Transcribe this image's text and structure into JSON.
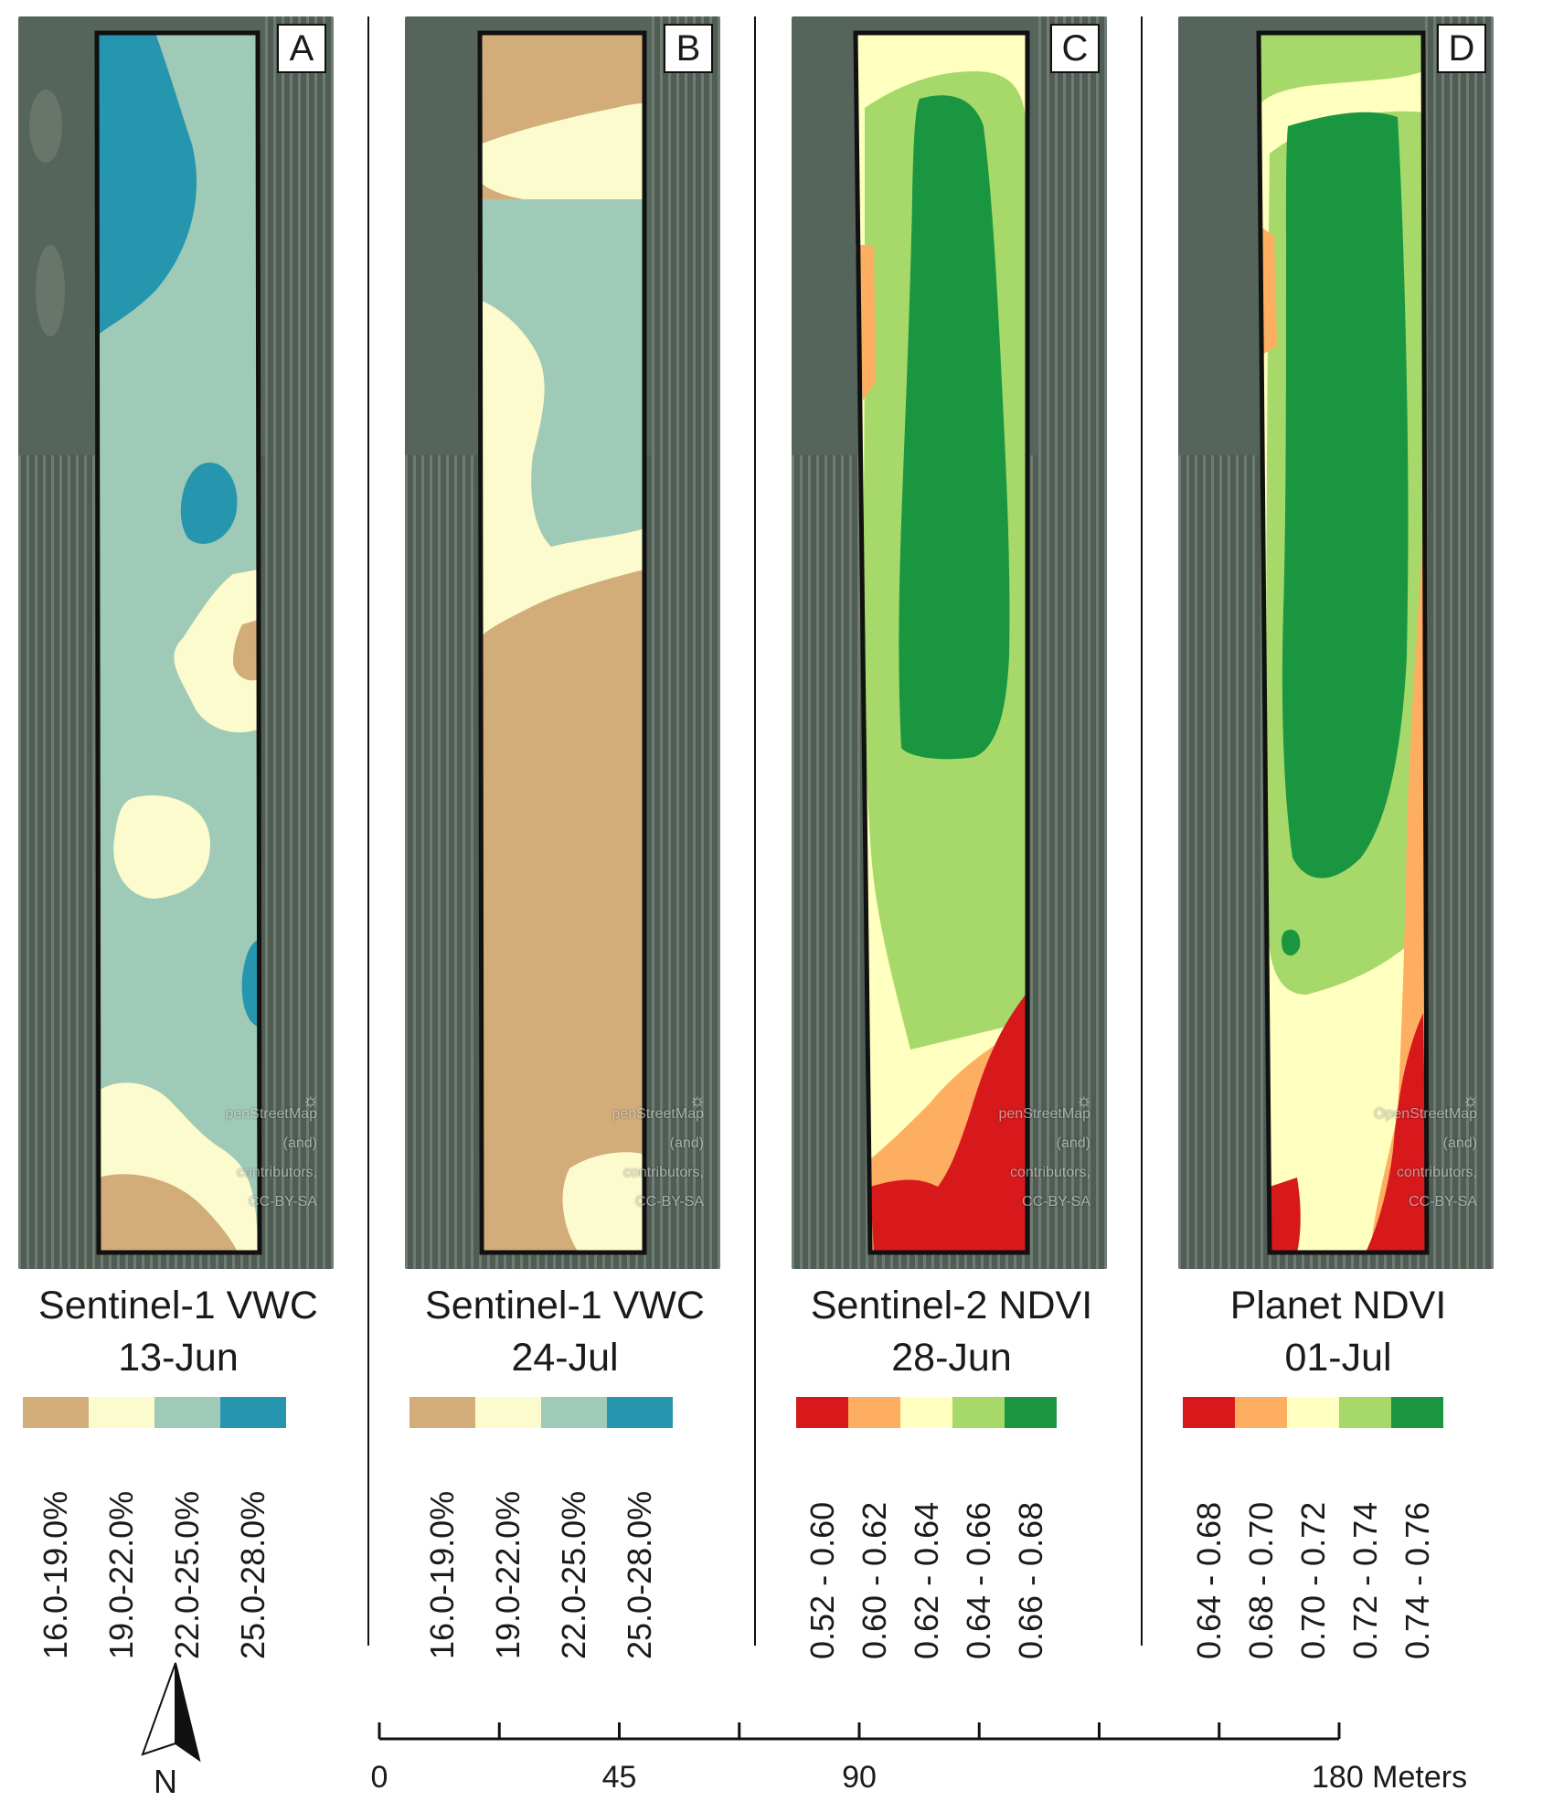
{
  "panels": [
    {
      "letter": "A",
      "title_line1": "Sentinel-1 VWC",
      "title_line2": "13-Jun",
      "attribution": [
        "penStreetMap",
        "(and)",
        "contributors,",
        "CC-BY-SA"
      ],
      "legend": [
        {
          "label": "16.0-19.0%",
          "color": "#d2ad7a"
        },
        {
          "label": "19.0-22.0%",
          "color": "#fbfbcd"
        },
        {
          "label": "22.0-25.0%",
          "color": "#9ecab7"
        },
        {
          "label": "25.0-28.0%",
          "color": "#2596ad"
        }
      ]
    },
    {
      "letter": "B",
      "title_line1": "Sentinel-1 VWC",
      "title_line2": "24-Jul",
      "attribution": [
        "penStreetMap",
        "(and)",
        "contributors,",
        "CC-BY-SA"
      ],
      "legend": [
        {
          "label": "16.0-19.0%",
          "color": "#d2ad7a"
        },
        {
          "label": "19.0-22.0%",
          "color": "#fbfbcd"
        },
        {
          "label": "22.0-25.0%",
          "color": "#9ecab7"
        },
        {
          "label": "25.0-28.0%",
          "color": "#2596ad"
        }
      ]
    },
    {
      "letter": "C",
      "title_line1": "Sentinel-2 NDVI",
      "title_line2": "28-Jun",
      "attribution": [
        "penStreetMap",
        "(and)",
        "contributors,",
        "CC-BY-SA"
      ],
      "legend": [
        {
          "label": "0.52 - 0.60",
          "color": "#d7191c"
        },
        {
          "label": "0.60 - 0.62",
          "color": "#fdae61"
        },
        {
          "label": "0.62 - 0.64",
          "color": "#ffffc0"
        },
        {
          "label": "0.64 - 0.66",
          "color": "#a6d96a"
        },
        {
          "label": "0.66 - 0.68",
          "color": "#1a9641"
        }
      ]
    },
    {
      "letter": "D",
      "title_line1": "Planet NDVI",
      "title_line2": "01-Jul",
      "attribution": [
        "OpenStreetMap",
        "(and)",
        "contributors,",
        "CC-BY-SA"
      ],
      "legend": [
        {
          "label": "0.64 - 0.68",
          "color": "#d7191c"
        },
        {
          "label": "0.68 - 0.70",
          "color": "#fdae61"
        },
        {
          "label": "0.70 - 0.72",
          "color": "#ffffc0"
        },
        {
          "label": "0.72 - 0.74",
          "color": "#a6d96a"
        },
        {
          "label": "0.74 - 0.76",
          "color": "#1a9641"
        }
      ]
    }
  ],
  "north_arrow": {
    "label": "N"
  },
  "scale_bar": {
    "labels": [
      "0",
      "45",
      "90",
      "180 Meters"
    ],
    "values": [
      0,
      45,
      90,
      180
    ],
    "ticks": [
      0,
      22.5,
      45,
      67.5,
      90,
      112.5,
      135,
      157.5,
      180
    ]
  },
  "colors": {
    "field_outline": "#111111",
    "imagery_dark": "#4b5a52",
    "imagery_light": "#6b7a70"
  }
}
